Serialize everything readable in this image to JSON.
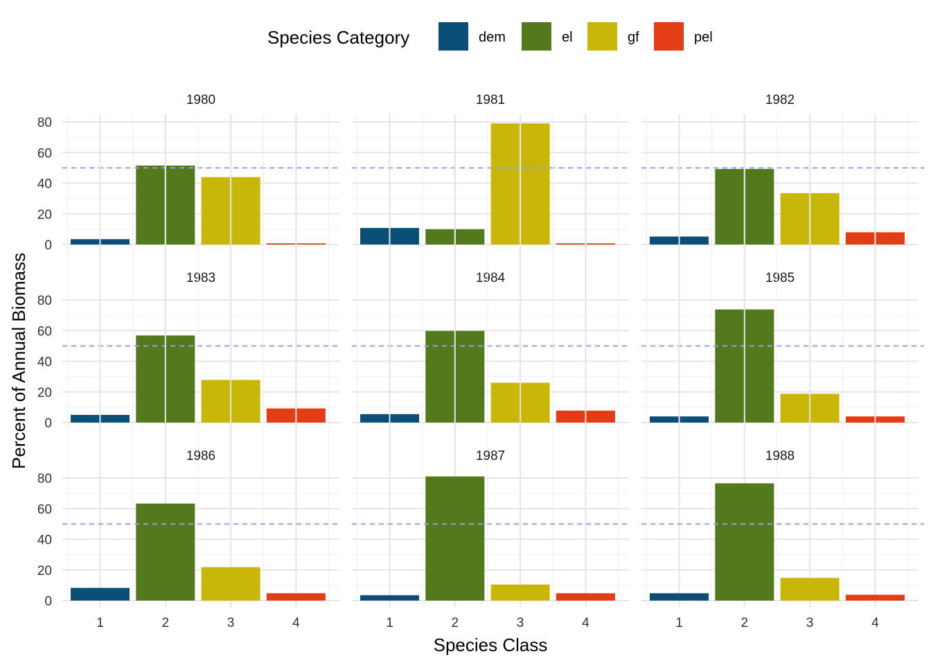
{
  "chart_data": {
    "type": "bar",
    "layout": "facet-grid 3x3",
    "xlabel": "Species Class",
    "ylabel": "Percent of Annual Biomass",
    "categories": [
      "1",
      "2",
      "3",
      "4"
    ],
    "ylim": [
      0,
      85
    ],
    "yticks": [
      0,
      20,
      40,
      60,
      80
    ],
    "grid": true,
    "reference_line": {
      "y": 50,
      "style": "dashed",
      "color": "#8fa3e3"
    },
    "legend": {
      "title": "Species Category",
      "position": "top",
      "entries": [
        {
          "label": "dem",
          "color": "#0b4f79"
        },
        {
          "label": "el",
          "color": "#52791b"
        },
        {
          "label": "gf",
          "color": "#c8b708"
        },
        {
          "label": "pel",
          "color": "#e43c14"
        }
      ]
    },
    "facets": [
      {
        "title": "1980",
        "values": [
          3.5,
          51.5,
          44.0,
          0.8
        ]
      },
      {
        "title": "1981",
        "values": [
          10.8,
          10.0,
          79.0,
          0.8
        ]
      },
      {
        "title": "1982",
        "values": [
          5.2,
          49.3,
          33.5,
          8.0
        ]
      },
      {
        "title": "1983",
        "values": [
          5.0,
          56.8,
          27.8,
          9.2
        ]
      },
      {
        "title": "1984",
        "values": [
          5.5,
          59.8,
          26.0,
          7.8
        ]
      },
      {
        "title": "1985",
        "values": [
          4.0,
          73.8,
          18.8,
          4.0
        ]
      },
      {
        "title": "1986",
        "values": [
          8.3,
          63.3,
          21.8,
          4.8
        ]
      },
      {
        "title": "1987",
        "values": [
          3.5,
          81.0,
          10.5,
          4.8
        ]
      },
      {
        "title": "1988",
        "values": [
          4.8,
          76.5,
          14.8,
          3.8
        ]
      }
    ]
  }
}
